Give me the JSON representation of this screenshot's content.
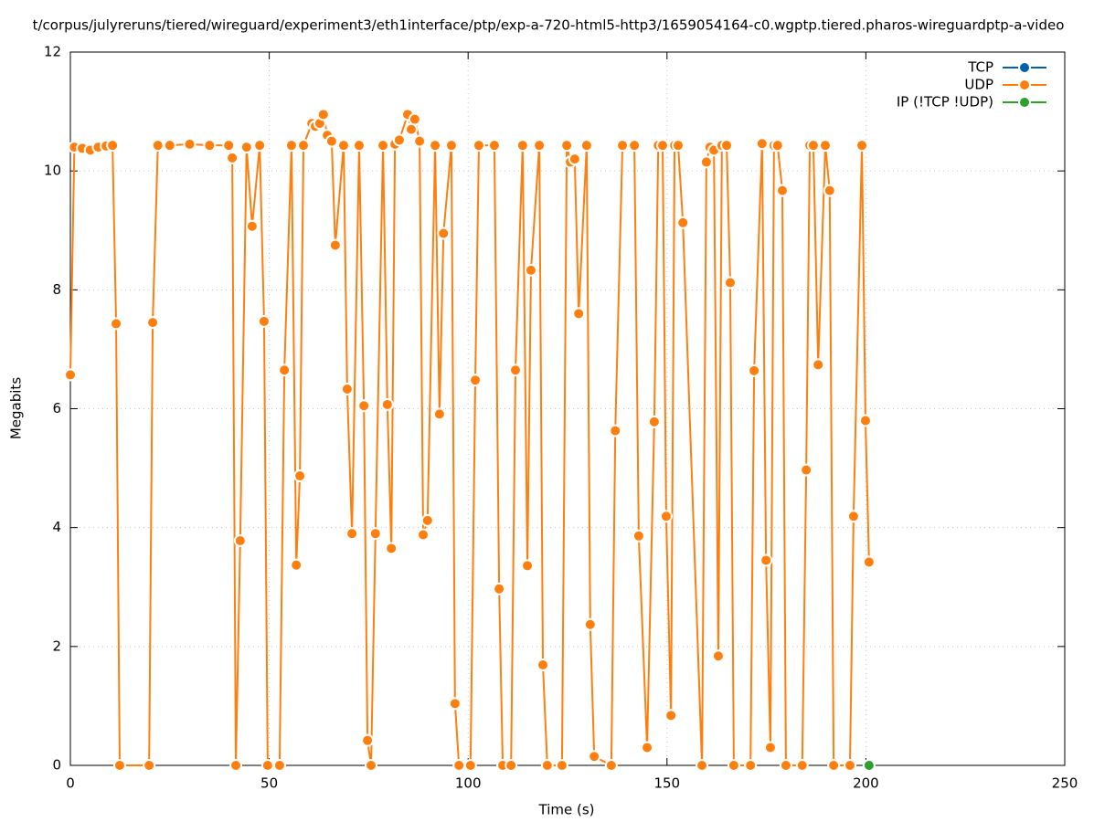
{
  "chart_data": {
    "type": "line",
    "title": "t/corpus/julyreruns/tiered/wireguard/experiment3/eth1interface/ptp/exp-a-720-html5-http3/1659054164-c0.wgptp.tiered.pharos-wireguardptp-a-video",
    "x_label": "Time (s)",
    "y_label": "Megabits",
    "xlim": [
      0,
      250
    ],
    "xticks": [
      0,
      50,
      100,
      150,
      200,
      250
    ],
    "ylim": [
      0,
      12
    ],
    "yticks": [
      0,
      2,
      4,
      6,
      8,
      10,
      12
    ],
    "grid": true,
    "legend": "top-right",
    "series": [
      {
        "name": "TCP",
        "color": "#0060ad",
        "x": [],
        "values": []
      },
      {
        "name": "UDP",
        "color": "#ff7f0e",
        "x": [
          0,
          1,
          3,
          5,
          7,
          9,
          10.6,
          11.5,
          12.4,
          19.8,
          20.7,
          22,
          25,
          30,
          35,
          39.8,
          40.7,
          41.6,
          42.7,
          44.3,
          45.7,
          47.6,
          48.7,
          49.6,
          52.6,
          53.8,
          55.6,
          56.8,
          57.7,
          58.6,
          60.7,
          61.6,
          62.7,
          63.6,
          64.6,
          65.7,
          66.6,
          68.7,
          69.6,
          70.8,
          72.6,
          73.8,
          74.7,
          75.6,
          76.7,
          78.6,
          79.7,
          80.7,
          81.6,
          82.7,
          84.8,
          85.7,
          86.6,
          87.8,
          88.7,
          89.8,
          91.7,
          92.8,
          93.8,
          95.8,
          96.7,
          97.7,
          100.6,
          101.8,
          102.7,
          106.6,
          107.8,
          108.7,
          110.8,
          111.9,
          113.7,
          114.9,
          115.8,
          117.9,
          118.8,
          119.9,
          123.6,
          124.8,
          125.7,
          126.8,
          127.8,
          129.8,
          130.7,
          131.7,
          136,
          137,
          138.8,
          141.8,
          142.9,
          145,
          146.8,
          147.8,
          148.9,
          149.8,
          151,
          151.9,
          152.8,
          154,
          158.8,
          159.9,
          160.8,
          161.8,
          162.9,
          163.8,
          165,
          165.9,
          166.8,
          171,
          171.9,
          173.9,
          174.9,
          176,
          176.9,
          177.8,
          179,
          179.9,
          184,
          185,
          185.9,
          186.8,
          188,
          189.8,
          190.9,
          191.9,
          196,
          196.9,
          199,
          199.9,
          200.8
        ],
        "values": [
          6.57,
          10.4,
          10.38,
          10.35,
          10.4,
          10.42,
          10.43,
          7.43,
          0,
          0,
          7.45,
          10.43,
          10.43,
          10.45,
          10.43,
          10.43,
          10.22,
          0,
          3.78,
          10.4,
          9.07,
          10.43,
          7.47,
          0,
          0,
          6.65,
          10.43,
          3.37,
          4.87,
          10.43,
          10.8,
          10.75,
          10.8,
          10.95,
          10.6,
          10.5,
          8.75,
          10.43,
          6.33,
          3.9,
          10.43,
          6.05,
          0.42,
          0,
          3.9,
          10.43,
          6.07,
          3.65,
          10.45,
          10.52,
          10.95,
          10.7,
          10.87,
          10.5,
          3.88,
          4.12,
          10.43,
          5.91,
          8.95,
          10.43,
          1.04,
          0,
          0,
          6.48,
          10.43,
          10.43,
          2.97,
          0,
          0,
          6.65,
          10.43,
          3.36,
          8.33,
          10.43,
          1.69,
          0,
          0,
          10.43,
          10.15,
          10.2,
          7.6,
          10.43,
          2.37,
          0.15,
          0,
          5.63,
          10.43,
          10.43,
          3.86,
          0.3,
          5.78,
          10.43,
          10.43,
          4.19,
          0.84,
          10.43,
          10.43,
          9.13,
          0,
          10.15,
          10.4,
          10.35,
          1.84,
          10.43,
          10.43,
          8.12,
          0,
          0,
          6.64,
          10.46,
          3.45,
          0.3,
          10.43,
          10.43,
          9.67,
          0,
          0,
          4.97,
          10.43,
          10.43,
          6.74,
          10.43,
          9.67,
          0,
          0,
          4.19,
          10.43,
          5.8,
          3.42
        ]
      },
      {
        "name": "IP (!TCP  !UDP)",
        "color": "#2ca02c",
        "x": [
          200.8
        ],
        "values": [
          0
        ]
      }
    ]
  }
}
